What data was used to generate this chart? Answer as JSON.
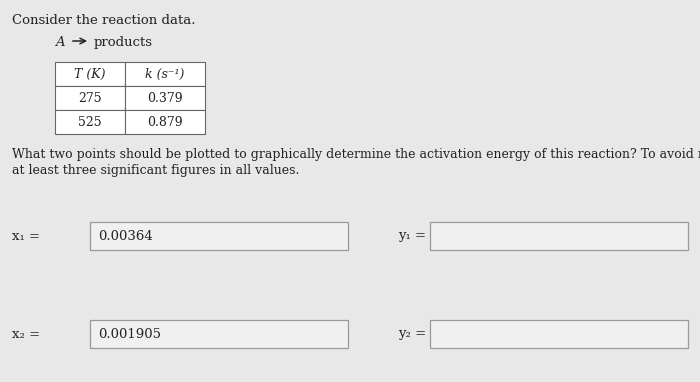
{
  "title": "Consider the reaction data.",
  "reaction_a": "A",
  "reaction_products": "products",
  "table_headers": [
    "T (K)",
    "k (s⁻¹)"
  ],
  "table_data": [
    [
      "275",
      "0.379"
    ],
    [
      "525",
      "0.879"
    ]
  ],
  "question_line1": "What two points should be plotted to graphically determine the activation energy of this reaction? To avoid rounding errors, use",
  "question_line2": "at least three significant figures in all values.",
  "x1_label": "x₁ =",
  "x1_value": "0.00364",
  "x2_label": "x₂ =",
  "x2_value": "0.001905",
  "y1_label": "y₁ =",
  "y2_label": "y₂ =",
  "bg_color": "#e8e8e8",
  "box_fill": "#f5f5f5",
  "box_edge": "#aaaaaa",
  "text_color": "#222222",
  "font_size": 9.5
}
